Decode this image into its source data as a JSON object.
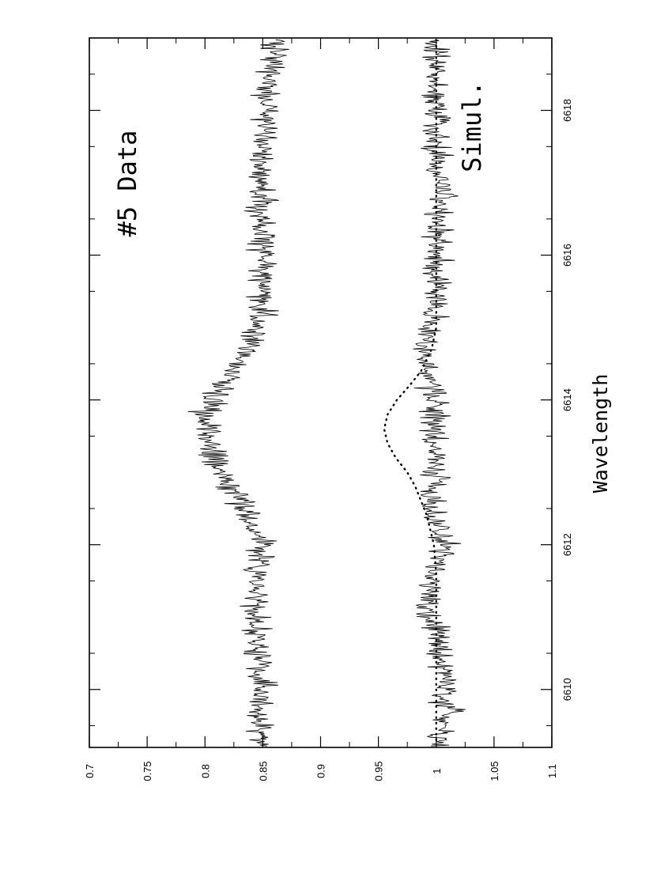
{
  "chart_data": {
    "type": "line",
    "title": "",
    "xlabel": "Wavelength",
    "ylabel": "",
    "orientation": "rotated-90-ccw",
    "xlim": [
      6609.2,
      6619.0
    ],
    "ylim": [
      0.7,
      1.1
    ],
    "x_ticks_major": [
      6610,
      6612,
      6614,
      6616,
      6618
    ],
    "x_ticks_major_labels": [
      "6610",
      "6612",
      "6614",
      "6616",
      "6618"
    ],
    "y_ticks_major": [
      0.7,
      0.75,
      0.8,
      0.85,
      0.9,
      0.95,
      1.0,
      1.05,
      1.1
    ],
    "y_ticks_major_labels": [
      "0.7",
      "0.75",
      "0.8",
      "0.85",
      "0.9",
      "0.95",
      "1",
      "1.05",
      "1.1"
    ],
    "grid": false,
    "annotations": [
      "#5 Data",
      "Simul."
    ],
    "series": [
      {
        "style": "solid",
        "x": [
          6609.3,
          6609.6,
          6609.9,
          6610.2,
          6610.5,
          6610.8,
          6611.1,
          6611.4,
          6611.7,
          6612.0,
          6612.3,
          6612.6,
          6612.9,
          6613.2,
          6613.5,
          6613.8,
          6614.1,
          6614.4,
          6614.7,
          6615.0,
          6615.3,
          6615.6,
          6615.9,
          6616.2,
          6616.5,
          6616.8,
          6617.1,
          6617.4,
          6617.7,
          6618.0,
          6618.3,
          6618.6,
          6618.9
        ],
        "values": [
          1.0,
          1.01,
          1.01,
          1.01,
          1.0,
          1.0,
          0.99,
          0.995,
          1.0,
          1.01,
          1.0,
          0.995,
          1.0,
          1.0,
          1.0,
          1.0,
          1.0,
          0.99,
          0.99,
          0.995,
          1.0,
          1.0,
          1.0,
          1.0,
          1.0,
          1.005,
          1.0,
          1.0,
          1.0,
          1.0,
          1.0,
          1.0,
          1.0
        ],
        "amplitude": 0.012
      },
      {
        "style": "dotted",
        "x": [
          6609.3,
          6610.0,
          6610.8,
          6611.6,
          6612.0,
          6612.4,
          6612.8,
          6613.0,
          6613.2,
          6613.4,
          6613.6,
          6613.8,
          6614.0,
          6614.2,
          6614.4,
          6614.7,
          6615.0,
          6615.5,
          6616.0,
          6617.0,
          6618.0,
          6618.9
        ],
        "values": [
          1.0,
          1.0,
          1.0,
          1.0,
          0.998,
          0.992,
          0.982,
          0.975,
          0.965,
          0.958,
          0.955,
          0.958,
          0.966,
          0.977,
          0.987,
          0.996,
          1.0,
          1.0,
          1.0,
          1.0,
          1.0,
          1.0
        ]
      },
      {
        "style": "solid",
        "x": [
          6609.3,
          6609.6,
          6609.9,
          6610.2,
          6610.5,
          6610.8,
          6611.1,
          6611.4,
          6611.7,
          6612.0,
          6612.3,
          6612.6,
          6612.9,
          6613.2,
          6613.5,
          6613.8,
          6614.1,
          6614.4,
          6614.7,
          6615.0,
          6615.3,
          6615.6,
          6615.9,
          6616.2,
          6616.5,
          6616.8,
          6617.1,
          6617.4,
          6617.7,
          6618.0,
          6618.3,
          6618.6,
          6618.9
        ],
        "values": [
          0.85,
          0.845,
          0.85,
          0.85,
          0.845,
          0.845,
          0.84,
          0.845,
          0.845,
          0.85,
          0.84,
          0.83,
          0.82,
          0.81,
          0.8,
          0.8,
          0.81,
          0.825,
          0.835,
          0.845,
          0.85,
          0.85,
          0.85,
          0.85,
          0.85,
          0.85,
          0.85,
          0.85,
          0.85,
          0.855,
          0.855,
          0.86,
          0.86
        ],
        "amplitude": 0.012
      }
    ]
  }
}
